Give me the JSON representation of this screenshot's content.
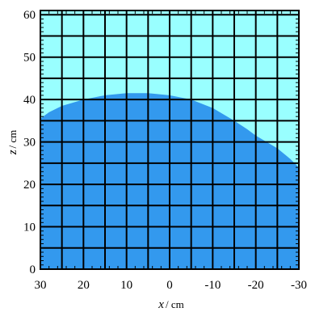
{
  "chart_data": {
    "type": "area",
    "title": "",
    "xlabel": {
      "var": "x",
      "unit": "/ cm"
    },
    "ylabel": {
      "var": "z",
      "unit": "/ cm"
    },
    "xlim": [
      30,
      -30
    ],
    "ylim": [
      0,
      61
    ],
    "x_ticks": [
      30,
      20,
      10,
      0,
      -10,
      -20,
      -30
    ],
    "x_tick_labels": [
      "30",
      "20",
      "10",
      "0",
      "-10",
      "-20",
      "-30"
    ],
    "y_ticks": [
      0,
      10,
      20,
      30,
      40,
      50,
      60
    ],
    "y_tick_labels": [
      "0",
      "10",
      "20",
      "30",
      "40",
      "50",
      "60"
    ],
    "grid": true,
    "grid_step": 5,
    "series": [
      {
        "x": [
          30,
          28,
          25,
          20,
          15,
          10,
          5,
          0,
          -5,
          -10,
          -15,
          -18,
          -20,
          -25,
          -28,
          -30
        ],
        "z": [
          35.5,
          37,
          38.5,
          40,
          41,
          41.5,
          41.5,
          41,
          40,
          38,
          35,
          33,
          31.5,
          28.5,
          26,
          24
        ],
        "fill": "#3399ee"
      }
    ],
    "background_fill": "#99ffff",
    "grid_color": "#000000"
  }
}
